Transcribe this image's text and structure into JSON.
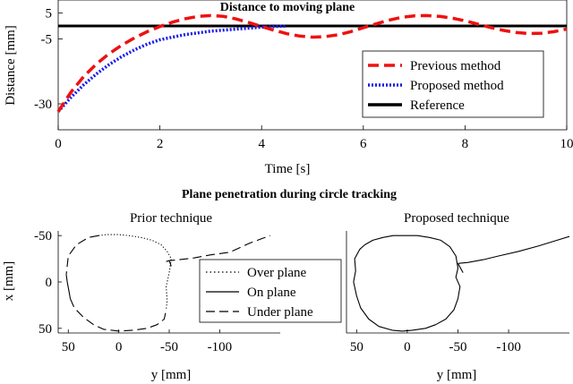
{
  "chart_data": [
    {
      "type": "line",
      "title": "Distance to moving plane",
      "xlabel": "Time [s]",
      "ylabel": "Distance [mm]",
      "xlim": [
        0,
        10
      ],
      "ylim": [
        -40,
        10
      ],
      "xticks": [
        0,
        2,
        4,
        6,
        8,
        10
      ],
      "xtick_labels": [
        "0",
        "2",
        "4",
        "6",
        "8",
        "10"
      ],
      "yticks": [
        5,
        -5,
        -30
      ],
      "ytick_labels": [
        "5",
        "-5",
        "-30"
      ],
      "legend_position": "right",
      "series": [
        {
          "name": "Previous method",
          "color": "#ee1111",
          "style": "dashed",
          "x": [
            0,
            0.25,
            0.5,
            0.75,
            1.0,
            1.25,
            1.5,
            1.75,
            2.0,
            2.25,
            2.5,
            2.75,
            3.0,
            3.25,
            3.5,
            3.75,
            4.0,
            4.25,
            4.5,
            4.75,
            5.0,
            5.25,
            5.5,
            5.75,
            6.0,
            6.25,
            6.5,
            6.75,
            7.0,
            7.25,
            7.5,
            7.75,
            8.0,
            8.25,
            8.5,
            8.75,
            9.0,
            9.25,
            9.5,
            9.75,
            10.0
          ],
          "values": [
            -33,
            -25.5,
            -19.5,
            -14.7,
            -10.7,
            -7.4,
            -4.6,
            -2.2,
            -0.2,
            1.5,
            2.8,
            3.7,
            4.0,
            3.7,
            2.7,
            1.3,
            -0.2,
            -1.7,
            -3.0,
            -3.9,
            -4.3,
            -4.1,
            -3.4,
            -2.2,
            -0.7,
            0.8,
            2.2,
            3.3,
            3.9,
            4.0,
            3.7,
            3.0,
            2.0,
            0.7,
            -0.6,
            -1.7,
            -2.5,
            -2.9,
            -2.8,
            -2.2,
            -1.2
          ]
        },
        {
          "name": "Proposed method",
          "color": "#1a1aee",
          "style": "dotted",
          "x": [
            0,
            0.25,
            0.5,
            0.75,
            1.0,
            1.25,
            1.5,
            1.75,
            2.0,
            2.5,
            3.0,
            3.5,
            4.0,
            4.5
          ],
          "values": [
            -33,
            -27.5,
            -22.7,
            -18.5,
            -14.9,
            -11.8,
            -9.2,
            -7.0,
            -5.3,
            -3.3,
            -2.0,
            -1.2,
            -0.5,
            0
          ]
        },
        {
          "name": "Reference",
          "color": "#000000",
          "style": "solid",
          "x": [
            0,
            10
          ],
          "values": [
            0,
            0
          ]
        }
      ]
    },
    {
      "type": "line",
      "super_title": "Plane penetration during circle tracking",
      "title": "Prior technique",
      "xlabel": "y [mm]",
      "ylabel": "x [mm]",
      "xlim": [
        60,
        -160
      ],
      "ylim": [
        -55,
        55
      ],
      "xticks": [
        50,
        0,
        -50,
        -100
      ],
      "xtick_labels": [
        "50",
        "0",
        "-50",
        "-100"
      ],
      "yticks": [
        -50,
        0,
        50
      ],
      "ytick_labels": [
        "-50",
        "0",
        "50"
      ],
      "legend_position": "right",
      "series": [
        {
          "name": "Over plane",
          "style": "dotted",
          "x": [
            20,
            12,
            0,
            -10,
            -22,
            -33,
            -42,
            -48,
            -52,
            -50,
            -47,
            -48,
            -47
          ],
          "y": [
            -50,
            -51,
            -51,
            -50,
            -48,
            -45,
            -40,
            -33,
            -25,
            -10,
            5,
            20,
            30
          ]
        },
        {
          "name": "On plane",
          "style": "solid",
          "x": [
            52,
            51,
            49,
            48
          ],
          "y": [
            -8,
            0,
            12,
            18
          ]
        },
        {
          "name": "Under plane",
          "style": "dashed",
          "x": [
            20,
            30,
            42,
            50,
            52
          ],
          "y": [
            -50,
            -48,
            -40,
            -28,
            -8
          ]
        },
        {
          "name": "Under plane",
          "style": "dashed",
          "x": [
            48,
            44,
            35,
            25,
            15,
            0,
            -15,
            -28,
            -38,
            -45,
            -47
          ],
          "y": [
            18,
            28,
            38,
            46,
            51,
            53,
            52,
            50,
            46,
            40,
            30
          ]
        },
        {
          "name": "Under plane",
          "style": "dashed",
          "x": [
            -47,
            -50,
            -60,
            -75,
            -90,
            -110,
            -130,
            -150
          ],
          "y": [
            -22,
            -23,
            -24,
            -26,
            -29,
            -32,
            -42,
            -50
          ]
        },
        {
          "name": "On plane",
          "style": "solid",
          "x": [
            -50,
            -52
          ],
          "y": [
            -23,
            -17
          ]
        }
      ]
    },
    {
      "type": "line",
      "title": "Proposed technique",
      "xlabel": "y [mm]",
      "ylabel": "",
      "xlim": [
        60,
        -160
      ],
      "ylim": [
        -55,
        55
      ],
      "xticks": [
        50,
        0,
        -50,
        -100
      ],
      "xtick_labels": [
        "50",
        "0",
        "-50",
        "-100"
      ],
      "yticks": [],
      "ytick_labels": [],
      "series": [
        {
          "name": "On plane",
          "style": "solid",
          "x": [
            5,
            -10,
            -22,
            -33,
            -42,
            -48,
            -50,
            -48,
            -52,
            -50,
            -46,
            -38,
            -28,
            -18,
            -5,
            5,
            15,
            28,
            38,
            46,
            50,
            53,
            51,
            52,
            47,
            42,
            34,
            24,
            14,
            5
          ],
          "y": [
            -50,
            -50,
            -48,
            -45,
            -38,
            -28,
            -15,
            -5,
            5,
            18,
            30,
            40,
            46,
            50,
            52,
            53,
            52,
            48,
            40,
            28,
            15,
            0,
            -12,
            -25,
            -35,
            -40,
            -45,
            -48,
            -50,
            -50
          ]
        },
        {
          "name": "On plane",
          "style": "solid",
          "x": [
            -50,
            -60,
            -75,
            -90,
            -110,
            -130,
            -145,
            -160
          ],
          "y": [
            -20,
            -21,
            -24,
            -28,
            -33,
            -39,
            -44,
            -49
          ]
        },
        {
          "name": "On plane",
          "style": "solid",
          "x": [
            -50,
            -55
          ],
          "y": [
            -20,
            -10
          ]
        }
      ]
    }
  ]
}
